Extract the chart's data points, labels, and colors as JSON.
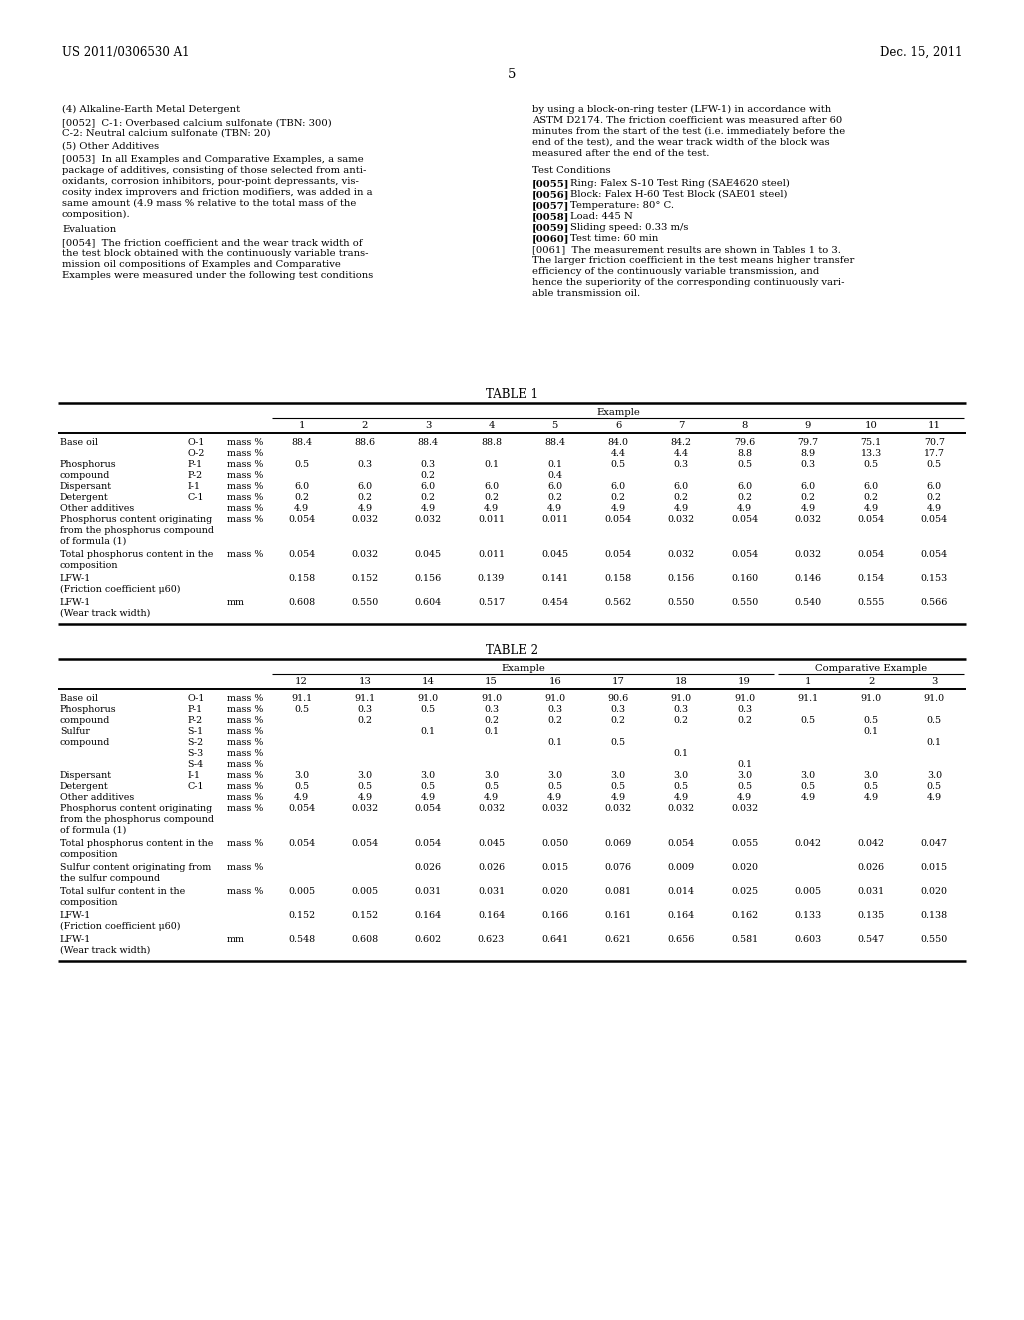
{
  "page_number": "5",
  "patent_number": "US 2011/0306530 A1",
  "patent_date": "Dec. 15, 2011",
  "background_color": "#ffffff",
  "text_color": "#000000",
  "table1_title": "TABLE 1",
  "table2_title": "TABLE 2",
  "table1_rows": [
    [
      "Base oil",
      "O-1",
      "mass %",
      "88.4",
      "88.6",
      "88.4",
      "88.8",
      "88.4",
      "84.0",
      "84.2",
      "79.6",
      "79.7",
      "75.1",
      "70.7"
    ],
    [
      "",
      "O-2",
      "mass %",
      "",
      "",
      "",
      "",
      "",
      "4.4",
      "4.4",
      "8.8",
      "8.9",
      "13.3",
      "17.7"
    ],
    [
      "Phosphorus",
      "P-1",
      "mass %",
      "0.5",
      "0.3",
      "0.3",
      "0.1",
      "0.1",
      "0.5",
      "0.3",
      "0.5",
      "0.3",
      "0.5",
      "0.5"
    ],
    [
      "compound",
      "P-2",
      "mass %",
      "",
      "",
      "0.2",
      "",
      "0.4",
      "",
      "",
      "",
      "",
      "",
      ""
    ],
    [
      "Dispersant",
      "I-1",
      "mass %",
      "6.0",
      "6.0",
      "6.0",
      "6.0",
      "6.0",
      "6.0",
      "6.0",
      "6.0",
      "6.0",
      "6.0",
      "6.0"
    ],
    [
      "Detergent",
      "C-1",
      "mass %",
      "0.2",
      "0.2",
      "0.2",
      "0.2",
      "0.2",
      "0.2",
      "0.2",
      "0.2",
      "0.2",
      "0.2",
      "0.2"
    ],
    [
      "Other additives",
      "",
      "mass %",
      "4.9",
      "4.9",
      "4.9",
      "4.9",
      "4.9",
      "4.9",
      "4.9",
      "4.9",
      "4.9",
      "4.9",
      "4.9"
    ],
    [
      "Phosphorus content originating|from the phosphorus compound|of formula (1)",
      "",
      "mass %",
      "0.054",
      "0.032",
      "0.032",
      "0.011",
      "0.011",
      "0.054",
      "0.032",
      "0.054",
      "0.032",
      "0.054",
      "0.054"
    ],
    [
      "Total phosphorus content in the|composition",
      "",
      "mass %",
      "0.054",
      "0.032",
      "0.045",
      "0.011",
      "0.045",
      "0.054",
      "0.032",
      "0.054",
      "0.032",
      "0.054",
      "0.054"
    ],
    [
      "LFW-1|(Friction coefficient μ60)",
      "",
      "",
      "0.158",
      "0.152",
      "0.156",
      "0.139",
      "0.141",
      "0.158",
      "0.156",
      "0.160",
      "0.146",
      "0.154",
      "0.153"
    ],
    [
      "LFW-1|(Wear track width)",
      "",
      "mm",
      "0.608",
      "0.550",
      "0.604",
      "0.517",
      "0.454",
      "0.562",
      "0.550",
      "0.550",
      "0.540",
      "0.555",
      "0.566"
    ]
  ],
  "table2_rows": [
    [
      "Base oil",
      "O-1",
      "mass %",
      "91.1",
      "91.1",
      "91.0",
      "91.0",
      "91.0",
      "90.6",
      "91.0",
      "91.0",
      "91.1",
      "91.0",
      "91.0"
    ],
    [
      "Phosphorus",
      "P-1",
      "mass %",
      "0.5",
      "0.3",
      "0.5",
      "0.3",
      "0.3",
      "0.3",
      "0.3",
      "0.3",
      "",
      "",
      ""
    ],
    [
      "compound",
      "P-2",
      "mass %",
      "",
      "0.2",
      "",
      "0.2",
      "0.2",
      "0.2",
      "0.2",
      "0.2",
      "0.5",
      "0.5",
      "0.5"
    ],
    [
      "Sulfur",
      "S-1",
      "mass %",
      "",
      "",
      "0.1",
      "0.1",
      "",
      "",
      "",
      "",
      "",
      "0.1",
      ""
    ],
    [
      "compound",
      "S-2",
      "mass %",
      "",
      "",
      "",
      "",
      "0.1",
      "0.5",
      "",
      "",
      "",
      "",
      "0.1"
    ],
    [
      "",
      "S-3",
      "mass %",
      "",
      "",
      "",
      "",
      "",
      "",
      "0.1",
      "",
      "",
      "",
      ""
    ],
    [
      "",
      "S-4",
      "mass %",
      "",
      "",
      "",
      "",
      "",
      "",
      "",
      "0.1",
      "",
      "",
      ""
    ],
    [
      "Dispersant",
      "I-1",
      "mass %",
      "3.0",
      "3.0",
      "3.0",
      "3.0",
      "3.0",
      "3.0",
      "3.0",
      "3.0",
      "3.0",
      "3.0",
      "3.0"
    ],
    [
      "Detergent",
      "C-1",
      "mass %",
      "0.5",
      "0.5",
      "0.5",
      "0.5",
      "0.5",
      "0.5",
      "0.5",
      "0.5",
      "0.5",
      "0.5",
      "0.5"
    ],
    [
      "Other additives",
      "",
      "mass %",
      "4.9",
      "4.9",
      "4.9",
      "4.9",
      "4.9",
      "4.9",
      "4.9",
      "4.9",
      "4.9",
      "4.9",
      "4.9"
    ],
    [
      "Phosphorus content originating|from the phosphorus compound|of formula (1)",
      "",
      "mass %",
      "0.054",
      "0.032",
      "0.054",
      "0.032",
      "0.032",
      "0.032",
      "0.032",
      "0.032",
      "",
      "",
      ""
    ],
    [
      "Total phosphorus content in the|composition",
      "",
      "mass %",
      "0.054",
      "0.054",
      "0.054",
      "0.045",
      "0.050",
      "0.069",
      "0.054",
      "0.055",
      "0.042",
      "0.042",
      "0.047"
    ],
    [
      "Sulfur content originating from|the sulfur compound",
      "",
      "mass %",
      "",
      "",
      "0.026",
      "0.026",
      "0.015",
      "0.076",
      "0.009",
      "0.020",
      "",
      "0.026",
      "0.015"
    ],
    [
      "Total sulfur content in the|composition",
      "",
      "mass %",
      "0.005",
      "0.005",
      "0.031",
      "0.031",
      "0.020",
      "0.081",
      "0.014",
      "0.025",
      "0.005",
      "0.031",
      "0.020"
    ],
    [
      "LFW-1|(Friction coefficient μ60)",
      "",
      "",
      "0.152",
      "0.152",
      "0.164",
      "0.164",
      "0.166",
      "0.161",
      "0.164",
      "0.162",
      "0.133",
      "0.135",
      "0.138"
    ],
    [
      "LFW-1|(Wear track width)",
      "",
      "mm",
      "0.548",
      "0.608",
      "0.602",
      "0.623",
      "0.641",
      "0.621",
      "0.656",
      "0.581",
      "0.603",
      "0.547",
      "0.550"
    ]
  ]
}
